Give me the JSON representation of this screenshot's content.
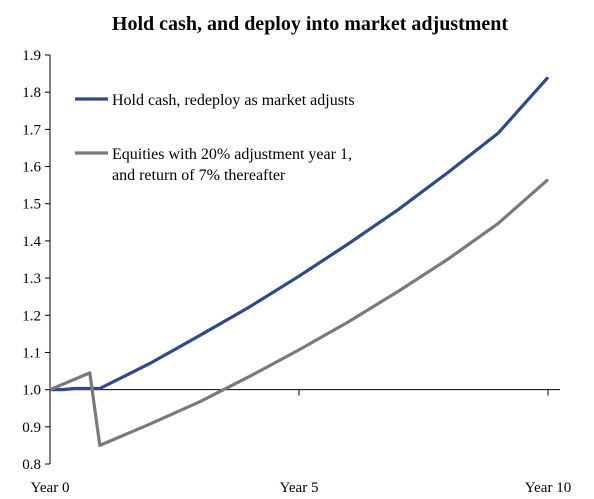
{
  "chart_data": {
    "type": "line",
    "title": "Hold cash, and deploy into market adjustment",
    "xlabel": "",
    "ylabel": "",
    "x_tick_labels": [
      "Year 0",
      "Year 5",
      "Year 10"
    ],
    "x_tick_positions": [
      0,
      5,
      10
    ],
    "xlim": [
      0,
      10
    ],
    "ylim": [
      0.8,
      1.9
    ],
    "y_ticks": [
      "0.8",
      "0.9",
      "1.0",
      "1.1",
      "1.2",
      "1.3",
      "1.4",
      "1.5",
      "1.6",
      "1.7",
      "1.8",
      "1.9"
    ],
    "grid": false,
    "legend_position": "top-left",
    "series": [
      {
        "name": "Hold cash, redeploy as market adjusts",
        "color": "#2e4a8c",
        "x": [
          0,
          0.25,
          0.5,
          0.75,
          1,
          2,
          3,
          4,
          5,
          6,
          7,
          8,
          9,
          10
        ],
        "y": [
          1.0,
          1.0,
          1.003,
          1.003,
          1.003,
          1.07,
          1.145,
          1.222,
          1.305,
          1.393,
          1.485,
          1.585,
          1.69,
          1.84
        ]
      },
      {
        "name_lines": [
          "Equities with 20% adjustment year 1,",
          "and return of 7% thereafter"
        ],
        "color": "#7a7a7a",
        "x": [
          0,
          0.8,
          1,
          2,
          3,
          4,
          5,
          6,
          7,
          8,
          9,
          10
        ],
        "y": [
          1.0,
          1.045,
          0.85,
          0.907,
          0.967,
          1.035,
          1.107,
          1.183,
          1.265,
          1.352,
          1.447,
          1.565
        ]
      }
    ]
  }
}
